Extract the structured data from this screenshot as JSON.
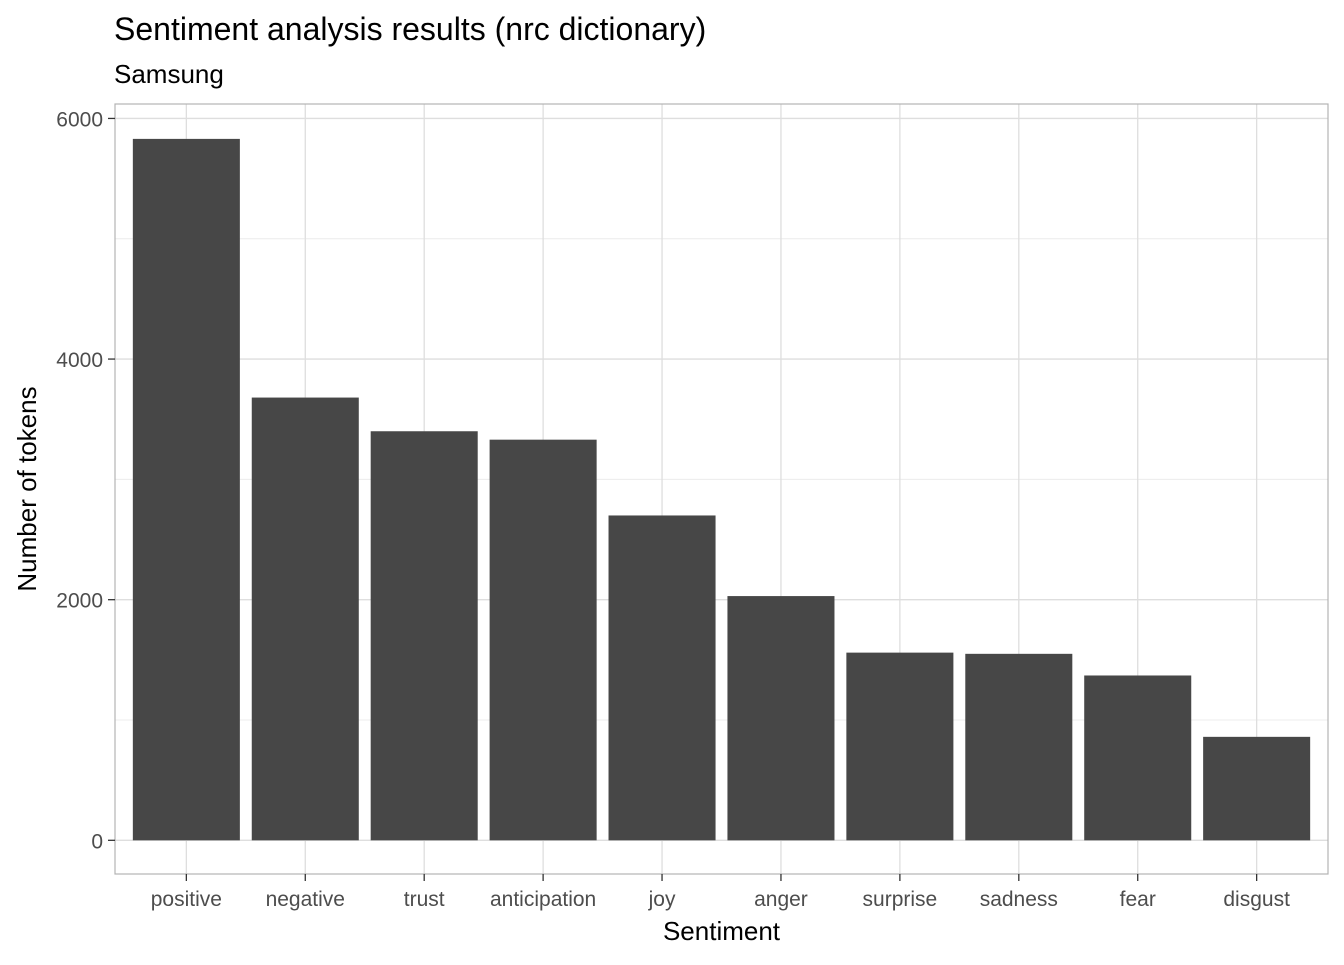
{
  "chart_data": {
    "type": "bar",
    "title": "Sentiment analysis results (nrc dictionary)",
    "subtitle": "Samsung",
    "xlabel": "Sentiment",
    "ylabel": "Number of tokens",
    "categories": [
      "positive",
      "negative",
      "trust",
      "anticipation",
      "joy",
      "anger",
      "surprise",
      "sadness",
      "fear",
      "disgust"
    ],
    "values": [
      5830,
      3680,
      3400,
      3330,
      2700,
      2030,
      1560,
      1550,
      1370,
      860
    ],
    "ylim": [
      -280,
      6120
    ],
    "yticks": [
      0,
      2000,
      4000,
      6000
    ],
    "ytick_labels": [
      "0",
      "2000",
      "4000",
      "6000"
    ],
    "grid": true,
    "bar_color": "#474747",
    "grid_color": "#dedede",
    "panel_border_color": "#b3b3b3"
  }
}
